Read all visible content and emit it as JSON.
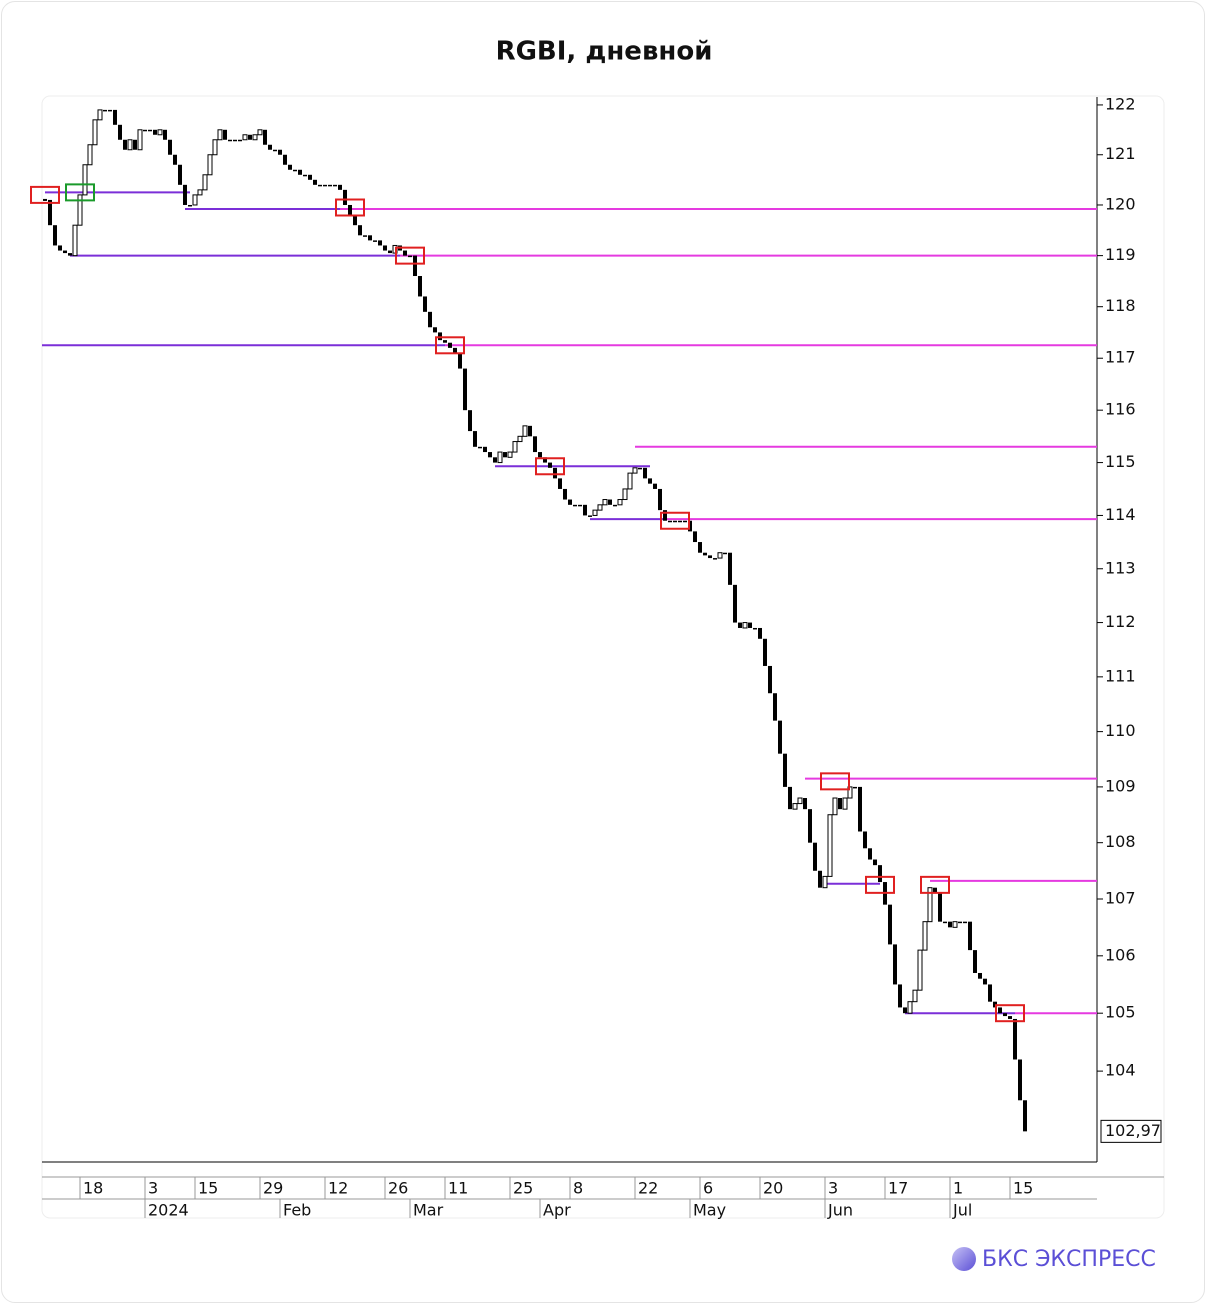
{
  "chart_data": {
    "type": "candlestick",
    "title": "RGBI, дневной",
    "log_scale": true,
    "ylim": [
      102.45,
      122.16
    ],
    "yticks": [
      104,
      105,
      106,
      107,
      108,
      109,
      110,
      111,
      112,
      113,
      114,
      115,
      116,
      117,
      118,
      119,
      120,
      121,
      122
    ],
    "xlim": [
      -0.6,
      210.4
    ],
    "xticks": [
      {
        "value": 7,
        "label": "18"
      },
      {
        "value": 20,
        "label": "3"
      },
      {
        "value": 30,
        "label": "15"
      },
      {
        "value": 43,
        "label": "29"
      },
      {
        "value": 56,
        "label": "12"
      },
      {
        "value": 68,
        "label": "26"
      },
      {
        "value": 80,
        "label": "11"
      },
      {
        "value": 93,
        "label": "25"
      },
      {
        "value": 105,
        "label": "8"
      },
      {
        "value": 118,
        "label": "22"
      },
      {
        "value": 131,
        "label": "6"
      },
      {
        "value": 143,
        "label": "20"
      },
      {
        "value": 156,
        "label": "3"
      },
      {
        "value": 168,
        "label": "17"
      },
      {
        "value": 181,
        "label": "1"
      },
      {
        "value": 193,
        "label": "15"
      }
    ],
    "month_ticks": [
      {
        "value": 20,
        "label": "2024"
      },
      {
        "value": 47,
        "label": "Feb"
      },
      {
        "value": 73,
        "label": "Mar"
      },
      {
        "value": 99,
        "label": "Apr"
      },
      {
        "value": 129,
        "label": "May"
      },
      {
        "value": 156,
        "label": "Jun"
      },
      {
        "value": 181,
        "label": "Jul"
      }
    ],
    "up_color": "#ffffff",
    "down_color": "#000000",
    "close": [
      120.1,
      119.6,
      119.2,
      119.1,
      119.05,
      119.0,
      119.6,
      120.2,
      120.8,
      121.2,
      121.7,
      121.9,
      121.9,
      121.9,
      121.6,
      121.3,
      121.1,
      121.3,
      121.1,
      121.5,
      121.5,
      121.5,
      121.4,
      121.5,
      121.3,
      121.0,
      120.8,
      120.4,
      120.0,
      120.0,
      120.2,
      120.3,
      120.6,
      121.0,
      121.3,
      121.5,
      121.3,
      121.3,
      121.3,
      121.3,
      121.4,
      121.3,
      121.4,
      121.5,
      121.2,
      121.1,
      121.1,
      121.0,
      120.8,
      120.7,
      120.7,
      120.6,
      120.6,
      120.5,
      120.4,
      120.4,
      120.4,
      120.4,
      120.4,
      120.3,
      120.0,
      119.8,
      119.6,
      119.4,
      119.4,
      119.3,
      119.3,
      119.2,
      119.1,
      119.05,
      119.2,
      119.1,
      119.0,
      119.0,
      118.6,
      118.2,
      117.9,
      117.6,
      117.5,
      117.35,
      117.3,
      117.2,
      117.1,
      116.8,
      116.0,
      115.6,
      115.3,
      115.3,
      115.2,
      115.1,
      115.0,
      115.2,
      115.1,
      115.2,
      115.4,
      115.5,
      115.7,
      115.5,
      115.2,
      115.1,
      115.0,
      114.9,
      114.7,
      114.5,
      114.3,
      114.2,
      114.2,
      114.2,
      114.0,
      114.0,
      114.1,
      114.2,
      114.3,
      114.2,
      114.2,
      114.3,
      114.5,
      114.8,
      114.9,
      114.9,
      114.7,
      114.6,
      114.5,
      114.1,
      113.9,
      113.9,
      113.9,
      113.9,
      113.9,
      113.7,
      113.5,
      113.3,
      113.25,
      113.2,
      113.2,
      113.3,
      113.3,
      112.7,
      112.0,
      111.9,
      112.0,
      111.9,
      111.9,
      111.7,
      111.2,
      110.7,
      110.2,
      109.6,
      109.0,
      108.6,
      108.7,
      108.8,
      108.6,
      108.0,
      107.5,
      107.2,
      107.4,
      108.5,
      108.8,
      108.6,
      108.8,
      109.0,
      109.0,
      108.2,
      107.9,
      107.7,
      107.6,
      107.3,
      106.9,
      106.2,
      105.5,
      105.1,
      105.0,
      105.2,
      105.4,
      106.1,
      106.6,
      107.2,
      107.1,
      106.6,
      106.6,
      106.5,
      106.6,
      106.6,
      106.6,
      106.1,
      105.7,
      105.6,
      105.5,
      105.2,
      105.1,
      105.0,
      104.95,
      104.9,
      104.2,
      103.5,
      102.97
    ],
    "last_price": {
      "value": 102.97,
      "label": "102,97"
    },
    "levels": [
      {
        "value": 120.25,
        "segments": [
          {
            "from": 0,
            "to": 29,
            "color": "#7b2fd8"
          }
        ]
      },
      {
        "value": 119.92,
        "segments": [
          {
            "from": 28,
            "to": 59,
            "color": "#7b2fd8"
          },
          {
            "from": 59,
            "to": 210.4,
            "color": "#e53ae0"
          }
        ]
      },
      {
        "value": 119.0,
        "segments": [
          {
            "from": 5,
            "to": 71,
            "color": "#7b2fd8"
          },
          {
            "from": 71,
            "to": 210.4,
            "color": "#e53ae0"
          }
        ]
      },
      {
        "value": 117.25,
        "segments": [
          {
            "from": -0.6,
            "to": 80,
            "color": "#7b2fd8"
          },
          {
            "from": 80,
            "to": 210.4,
            "color": "#e53ae0"
          }
        ]
      },
      {
        "value": 115.3,
        "segments": [
          {
            "from": 118,
            "to": 210.4,
            "color": "#e53ae0"
          }
        ]
      },
      {
        "value": 114.93,
        "segments": [
          {
            "from": 90,
            "to": 121,
            "color": "#7b2fd8"
          }
        ]
      },
      {
        "value": 113.93,
        "segments": [
          {
            "from": 109,
            "to": 124,
            "color": "#7b2fd8"
          },
          {
            "from": 124,
            "to": 210.4,
            "color": "#e53ae0"
          }
        ]
      },
      {
        "value": 109.15,
        "segments": [
          {
            "from": 152,
            "to": 210.4,
            "color": "#e53ae0"
          }
        ]
      },
      {
        "value": 107.27,
        "segments": [
          {
            "from": 156,
            "to": 167,
            "color": "#7b2fd8"
          }
        ]
      },
      {
        "value": 107.32,
        "segments": [
          {
            "from": 177,
            "to": 210.4,
            "color": "#e53ae0"
          }
        ]
      },
      {
        "value": 105.0,
        "segments": [
          {
            "from": 172,
            "to": 194,
            "color": "#7b2fd8"
          },
          {
            "from": 194,
            "to": 210.4,
            "color": "#e53ae0"
          }
        ]
      }
    ],
    "markers": [
      {
        "index": 0,
        "value": 120.2,
        "color": "#e02020"
      },
      {
        "index": 7,
        "value": 120.25,
        "color": "#1a9a2a"
      },
      {
        "index": 61,
        "value": 119.95,
        "color": "#e02020"
      },
      {
        "index": 73,
        "value": 119.0,
        "color": "#e02020"
      },
      {
        "index": 81,
        "value": 117.25,
        "color": "#e02020"
      },
      {
        "index": 101,
        "value": 114.93,
        "color": "#e02020"
      },
      {
        "index": 126,
        "value": 113.9,
        "color": "#e02020"
      },
      {
        "index": 158,
        "value": 109.1,
        "color": "#e02020"
      },
      {
        "index": 167,
        "value": 107.25,
        "color": "#e02020"
      },
      {
        "index": 178,
        "value": 107.25,
        "color": "#e02020"
      },
      {
        "index": 193,
        "value": 105.0,
        "color": "#e02020"
      }
    ]
  },
  "logo": "БКС ЭКСПРЕСС"
}
